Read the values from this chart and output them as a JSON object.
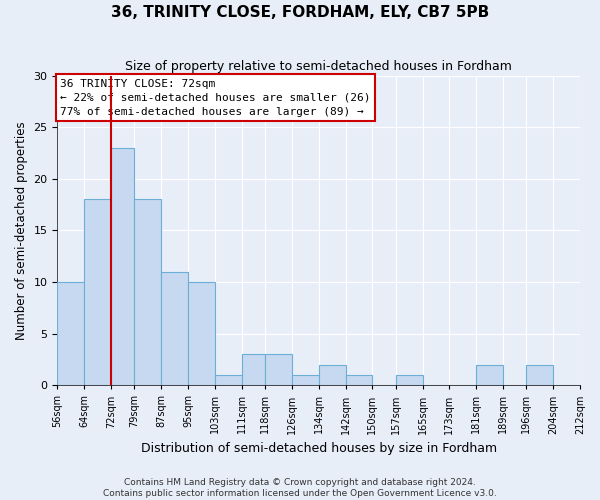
{
  "title": "36, TRINITY CLOSE, FORDHAM, ELY, CB7 5PB",
  "subtitle": "Size of property relative to semi-detached houses in Fordham",
  "xlabel": "Distribution of semi-detached houses by size in Fordham",
  "ylabel": "Number of semi-detached properties",
  "bin_labels": [
    "56sqm",
    "64sqm",
    "72sqm",
    "79sqm",
    "87sqm",
    "95sqm",
    "103sqm",
    "111sqm",
    "118sqm",
    "126sqm",
    "134sqm",
    "142sqm",
    "150sqm",
    "157sqm",
    "165sqm",
    "173sqm",
    "181sqm",
    "189sqm",
    "196sqm",
    "204sqm",
    "212sqm"
  ],
  "bin_edges": [
    56,
    64,
    72,
    79,
    87,
    95,
    103,
    111,
    118,
    126,
    134,
    142,
    150,
    157,
    165,
    173,
    181,
    189,
    196,
    204,
    212
  ],
  "counts": [
    10,
    18,
    23,
    18,
    11,
    10,
    1,
    3,
    3,
    1,
    2,
    1,
    0,
    1,
    0,
    0,
    2,
    0,
    2,
    0
  ],
  "bar_color": "#c6d9f0",
  "bar_edgecolor": "#6baed6",
  "property_value": 72,
  "vline_color": "#cc0000",
  "annotation_line1": "36 TRINITY CLOSE: 72sqm",
  "annotation_line2": "← 22% of semi-detached houses are smaller (26)",
  "annotation_line3": "77% of semi-detached houses are larger (89) →",
  "annotation_box_facecolor": "#ffffff",
  "annotation_box_edgecolor": "#cc0000",
  "ylim": [
    0,
    30
  ],
  "yticks": [
    0,
    5,
    10,
    15,
    20,
    25,
    30
  ],
  "fig_facecolor": "#e8eef8",
  "ax_facecolor": "#e8eef8",
  "grid_color": "#ffffff",
  "footer_line1": "Contains HM Land Registry data © Crown copyright and database right 2024.",
  "footer_line2": "Contains public sector information licensed under the Open Government Licence v3.0."
}
